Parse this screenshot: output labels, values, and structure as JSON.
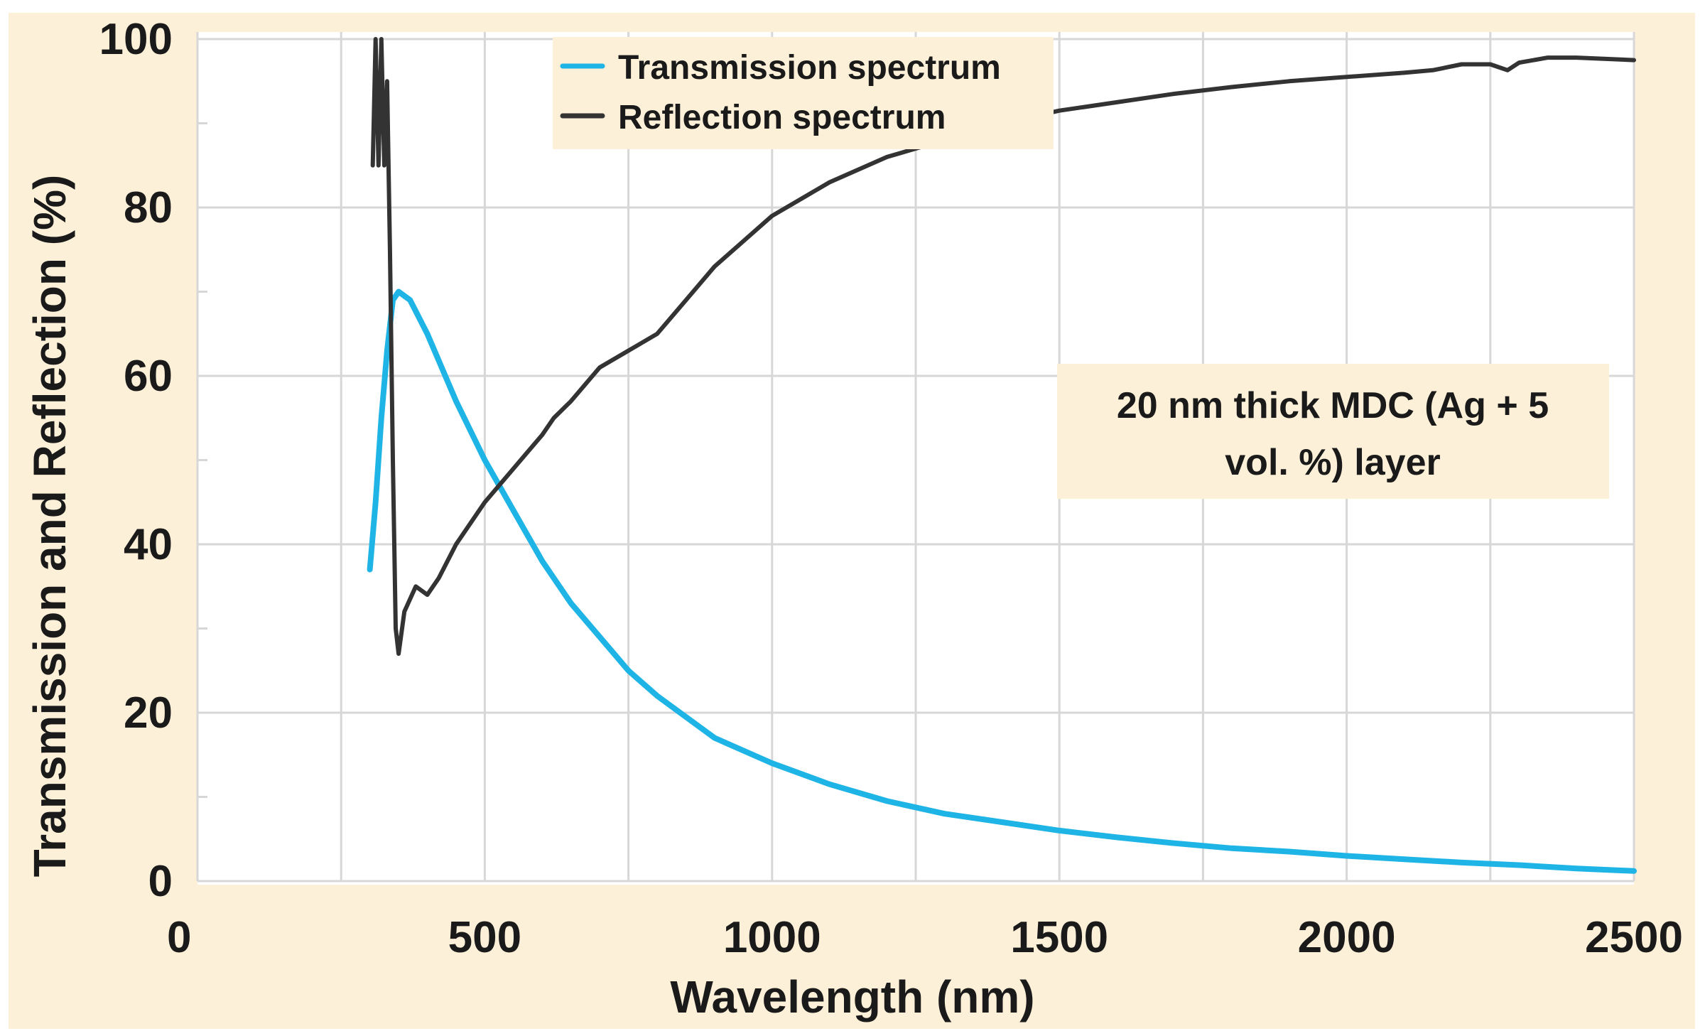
{
  "chart_data": {
    "type": "line",
    "title": "",
    "xlabel": "Wavelength (nm)",
    "ylabel": "Transmission and Reflection (%)",
    "xlim": [
      0,
      2500
    ],
    "ylim": [
      0,
      100
    ],
    "xticks": [
      0,
      500,
      1000,
      1500,
      2000,
      2500
    ],
    "yticks": [
      0,
      20,
      40,
      60,
      80,
      100
    ],
    "grid": true,
    "legend_position": "top-center",
    "annotation": {
      "line1": "20 nm thick MDC (Ag + 5",
      "line2": "vol. %) layer"
    },
    "series": [
      {
        "name": "Transmission spectrum",
        "color": "#1eb4e6",
        "x": [
          300,
          310,
          320,
          330,
          340,
          350,
          370,
          400,
          450,
          500,
          550,
          600,
          650,
          700,
          750,
          800,
          900,
          1000,
          1100,
          1200,
          1300,
          1400,
          1500,
          1600,
          1700,
          1800,
          1900,
          2000,
          2100,
          2200,
          2300,
          2400,
          2500
        ],
        "y": [
          37,
          45,
          55,
          63,
          69,
          70,
          69,
          65,
          57,
          50,
          44,
          38,
          33,
          29,
          25,
          22,
          17,
          14,
          11.5,
          9.5,
          8,
          7,
          6,
          5.2,
          4.5,
          3.9,
          3.5,
          3,
          2.6,
          2.2,
          1.9,
          1.5,
          1.2
        ]
      },
      {
        "name": "Reflection spectrum",
        "color": "#333333",
        "x": [
          305,
          310,
          315,
          320,
          325,
          330,
          335,
          340,
          345,
          350,
          360,
          380,
          400,
          420,
          450,
          500,
          550,
          600,
          620,
          650,
          700,
          750,
          800,
          850,
          900,
          950,
          1000,
          1100,
          1200,
          1300,
          1400,
          1500,
          1600,
          1700,
          1800,
          1900,
          2000,
          2100,
          2150,
          2200,
          2250,
          2280,
          2300,
          2350,
          2400,
          2500
        ],
        "y": [
          85,
          100,
          85,
          100,
          85,
          95,
          75,
          50,
          30,
          27,
          32,
          35,
          34,
          36,
          40,
          45,
          49,
          53,
          55,
          57,
          61,
          63,
          65,
          69,
          73,
          76,
          79,
          83,
          86,
          88,
          90,
          91.5,
          92.5,
          93.5,
          94.3,
          95,
          95.5,
          96,
          96.3,
          97,
          97,
          96.3,
          97.2,
          97.8,
          97.8,
          97.5
        ]
      }
    ]
  }
}
